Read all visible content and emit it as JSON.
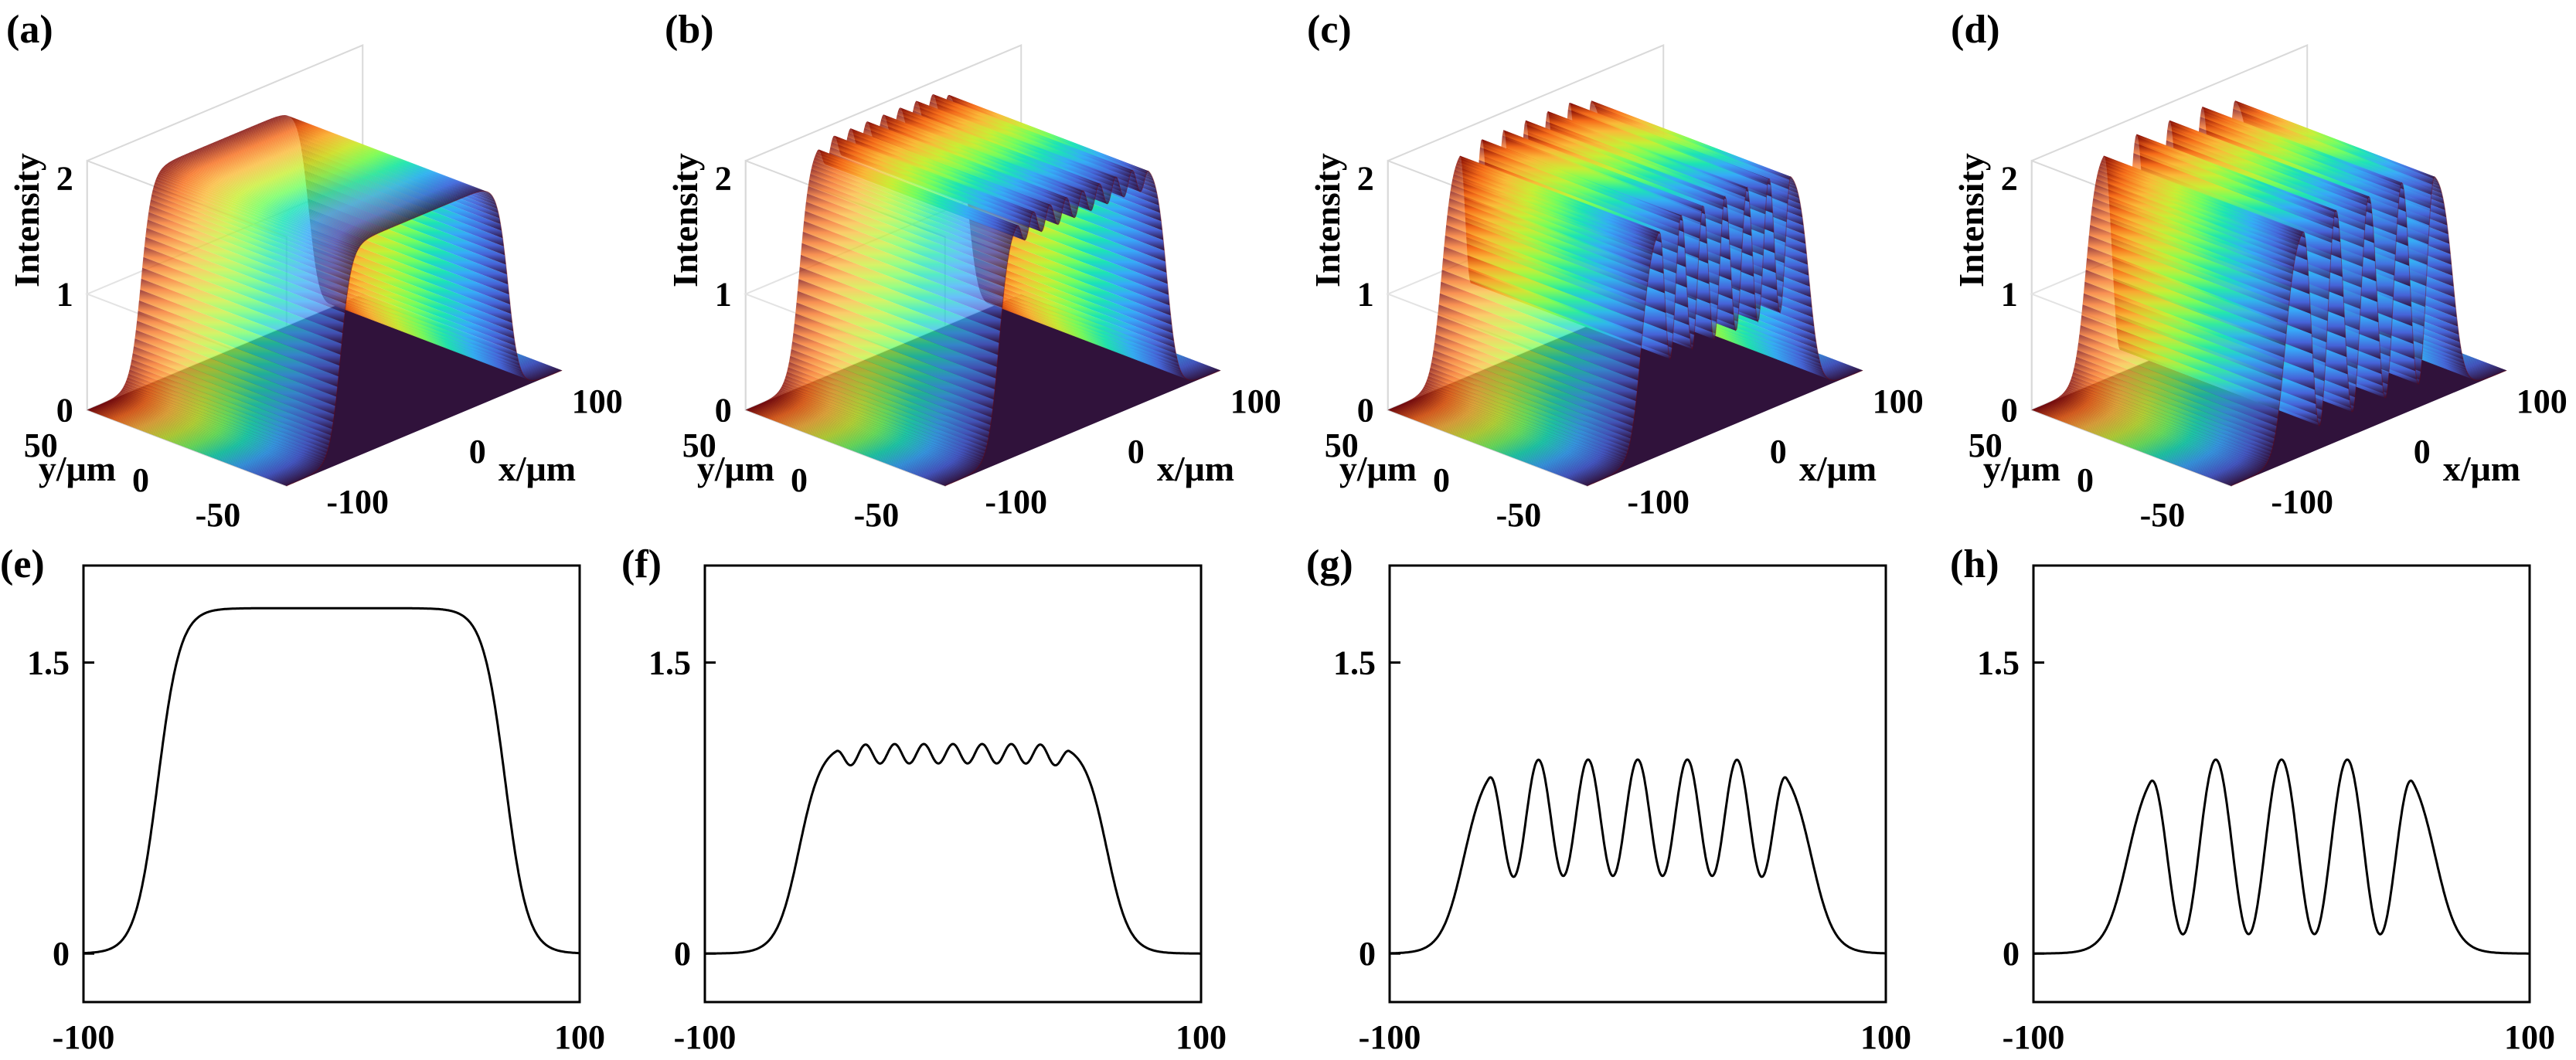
{
  "panel_labels": [
    "(a)",
    "(b)",
    "(c)",
    "(d)",
    "(e)",
    "(f)",
    "(g)",
    "(h)"
  ],
  "chart_data": [
    {
      "panel": "(a)",
      "type": "surface3d",
      "colormap": "turbo",
      "zlabel": "Intensity",
      "xlabel": "x/μm",
      "ylabel": "y/μm",
      "zticks": [
        "0",
        "1",
        "2"
      ],
      "xticks": [
        "-100",
        "0",
        "100"
      ],
      "yticks": [
        "50",
        "0",
        "-50"
      ],
      "zlim": [
        0,
        2
      ],
      "profile": {
        "height": 1.85,
        "ripple": 0,
        "peaks": 0,
        "valley": 1.0
      }
    },
    {
      "panel": "(b)",
      "type": "surface3d",
      "colormap": "turbo",
      "zlabel": "Intensity",
      "xlabel": "x/μm",
      "ylabel": "y/μm",
      "zticks": [
        "0",
        "1",
        "2"
      ],
      "xticks": [
        "-100",
        "0",
        "100"
      ],
      "yticks": [
        "50",
        "0",
        "-50"
      ],
      "zlim": [
        0,
        2
      ],
      "profile": {
        "height": 2.05,
        "ripple": 0.1,
        "peaks": 9,
        "valley": 0.9
      }
    },
    {
      "panel": "(c)",
      "type": "surface3d",
      "colormap": "turbo",
      "zlabel": "Intensity",
      "xlabel": "x/μm",
      "ylabel": "y/μm",
      "zticks": [
        "0",
        "1",
        "2"
      ],
      "xticks": [
        "-100",
        "0",
        "100"
      ],
      "yticks": [
        "50",
        "0",
        "-50"
      ],
      "zlim": [
        0,
        2
      ],
      "profile": {
        "height": 2.0,
        "ripple": 0.6,
        "peaks": 7,
        "valley": 0.4
      }
    },
    {
      "panel": "(d)",
      "type": "surface3d",
      "colormap": "turbo",
      "zlabel": "Intensity",
      "xlabel": "x/μm",
      "ylabel": "y/μm",
      "zticks": [
        "0",
        "1",
        "2"
      ],
      "xticks": [
        "-100",
        "0",
        "100"
      ],
      "yticks": [
        "50",
        "0",
        "-50"
      ],
      "zlim": [
        0,
        2
      ],
      "profile": {
        "height": 2.0,
        "ripple": 0.9,
        "peaks": 5,
        "valley": 0.1
      }
    },
    {
      "panel": "(e)",
      "type": "line",
      "xlim": [
        -100,
        100
      ],
      "ylim": [
        -0.25,
        2.0
      ],
      "xticks": [
        "-100",
        "100"
      ],
      "yticks": [
        "0",
        "1.5"
      ],
      "ytick_values": [
        0,
        1.5
      ],
      "series": [
        {
          "plateau_start": -45,
          "plateau_end": 45,
          "edge_low": -70,
          "edge_high": 70,
          "top": 1.78,
          "peaks": 0,
          "valley": 1.78
        }
      ]
    },
    {
      "panel": "(f)",
      "type": "line",
      "xlim": [
        -100,
        100
      ],
      "ylim": [
        -0.25,
        2.0
      ],
      "xticks": [
        "-100",
        "100"
      ],
      "yticks": [
        "0",
        "1.5"
      ],
      "ytick_values": [
        0,
        1.5
      ],
      "series": [
        {
          "plateau_start": -47,
          "plateau_end": 47,
          "edge_low": -62,
          "edge_high": 62,
          "top": 1.08,
          "peaks": 9,
          "valley": 0.98
        }
      ]
    },
    {
      "panel": "(g)",
      "type": "line",
      "xlim": [
        -100,
        100
      ],
      "ylim": [
        -0.25,
        2.0
      ],
      "xticks": [
        "-100",
        "100"
      ],
      "yticks": [
        "0",
        "1.5"
      ],
      "ytick_values": [
        0,
        1.5
      ],
      "series": [
        {
          "plateau_start": -60,
          "plateau_end": 60,
          "edge_low": -70,
          "edge_high": 70,
          "top": 1.0,
          "peaks": 7,
          "valley": 0.4
        }
      ]
    },
    {
      "panel": "(h)",
      "type": "line",
      "xlim": [
        -100,
        100
      ],
      "ylim": [
        -0.25,
        2.0
      ],
      "xticks": [
        "-100",
        "100"
      ],
      "yticks": [
        "0",
        "1.5"
      ],
      "ytick_values": [
        0,
        1.5
      ],
      "series": [
        {
          "plateau_start": -53,
          "plateau_end": 53,
          "edge_low": -62,
          "edge_high": 62,
          "top": 1.0,
          "peaks": 5,
          "valley": 0.1
        }
      ]
    }
  ]
}
